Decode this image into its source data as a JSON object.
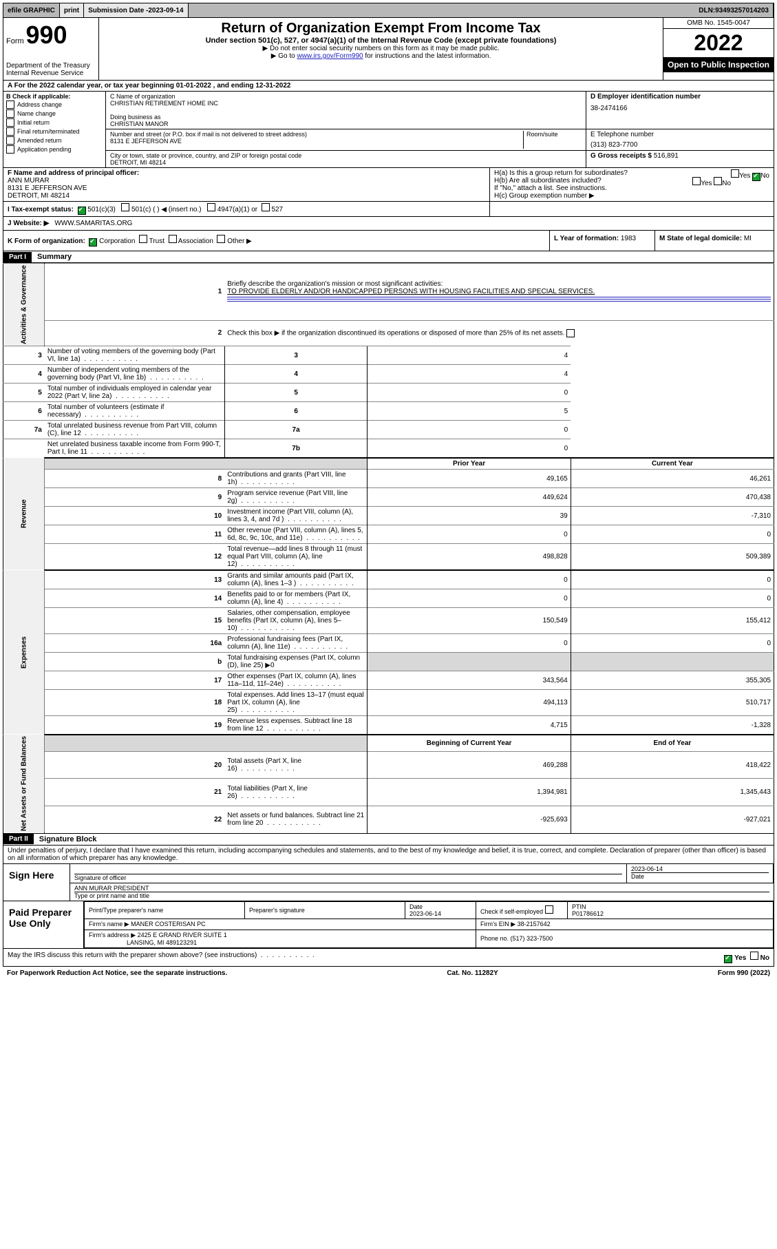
{
  "top": {
    "efile": "efile GRAPHIC",
    "print": "print",
    "submission_label": "Submission Date - ",
    "submission_date": "2023-09-14",
    "dln_label": "DLN: ",
    "dln": "93493257014203"
  },
  "header": {
    "form_label": "Form",
    "form_number": "990",
    "dept": "Department of the Treasury",
    "irs": "Internal Revenue Service",
    "title": "Return of Organization Exempt From Income Tax",
    "subtitle": "Under section 501(c), 527, or 4947(a)(1) of the Internal Revenue Code (except private foundations)",
    "line1": "▶ Do not enter social security numbers on this form as it may be made public.",
    "line2a": "▶ Go to ",
    "line2_link": "www.irs.gov/Form990",
    "line2b": " for instructions and the latest information.",
    "omb": "OMB No. 1545-0047",
    "year": "2022",
    "open_public": "Open to Public Inspection"
  },
  "row_a": "A For the 2022 calendar year, or tax year beginning 01-01-2022   , and ending 12-31-2022",
  "section_b": {
    "label": "B Check if applicable:",
    "items": [
      "Address change",
      "Name change",
      "Initial return",
      "Final return/terminated",
      "Amended return",
      "Application pending"
    ]
  },
  "section_c": {
    "name_label": "C Name of organization",
    "name": "CHRISTIAN RETIREMENT HOME INC",
    "dba_label": "Doing business as",
    "dba": "CHRISTIAN MANOR",
    "addr_label": "Number and street (or P.O. box if mail is not delivered to street address)",
    "room_label": "Room/suite",
    "addr": "8131 E JEFFERSON AVE",
    "city_label": "City or town, state or province, country, and ZIP or foreign postal code",
    "city": "DETROIT, MI  48214"
  },
  "section_d": {
    "label": "D Employer identification number",
    "ein": "38-2474166",
    "e_label": "E Telephone number",
    "phone": "(313) 823-7700",
    "g_label": "G Gross receipts $ ",
    "gross": "516,891"
  },
  "section_f": {
    "label": "F Name and address of principal officer:",
    "name": "ANN MURAR",
    "addr1": "8131 E JEFFERSON AVE",
    "addr2": "DETROIT, MI  48214"
  },
  "section_h": {
    "a": "H(a)  Is this a group return for subordinates?",
    "yes": "Yes",
    "no": "No",
    "b": "H(b)  Are all subordinates included?",
    "b_note": "If \"No,\" attach a list. See instructions.",
    "c": "H(c)  Group exemption number ▶"
  },
  "row_i": {
    "label": "I   Tax-exempt status:",
    "opt1": "501(c)(3)",
    "opt2": "501(c) (   ) ◀ (insert no.)",
    "opt3": "4947(a)(1) or",
    "opt4": "527"
  },
  "row_j": {
    "label": "J   Website: ▶ ",
    "url": "WWW.SAMARITAS.ORG"
  },
  "row_k": {
    "label": "K Form of organization:",
    "corp": "Corporation",
    "trust": "Trust",
    "assoc": "Association",
    "other": "Other ▶",
    "l_label": "L Year of formation: ",
    "l_val": "1983",
    "m_label": "M State of legal domicile: ",
    "m_val": "MI"
  },
  "part1": {
    "header": "Part I",
    "title": "Summary",
    "sections": {
      "gov": "Activities & Governance",
      "rev": "Revenue",
      "exp": "Expenses",
      "net": "Net Assets or Fund Balances"
    },
    "line1_label": "Briefly describe the organization's mission or most significant activities:",
    "line1_text": "TO PROVIDE ELDERLY AND/OR HANDICAPPED PERSONS WITH HOUSING FACILITIES AND SPECIAL SERVICES.",
    "line2": "Check this box ▶      if the organization discontinued its operations or disposed of more than 25% of its net assets.",
    "lines_gov": [
      {
        "n": "3",
        "d": "Number of voting members of the governing body (Part VI, line 1a)",
        "k": "3",
        "v": "4"
      },
      {
        "n": "4",
        "d": "Number of independent voting members of the governing body (Part VI, line 1b)",
        "k": "4",
        "v": "4"
      },
      {
        "n": "5",
        "d": "Total number of individuals employed in calendar year 2022 (Part V, line 2a)",
        "k": "5",
        "v": "0"
      },
      {
        "n": "6",
        "d": "Total number of volunteers (estimate if necessary)",
        "k": "6",
        "v": "5"
      },
      {
        "n": "7a",
        "d": "Total unrelated business revenue from Part VIII, column (C), line 12",
        "k": "7a",
        "v": "0"
      },
      {
        "n": "",
        "d": "Net unrelated business taxable income from Form 990-T, Part I, line 11",
        "k": "7b",
        "v": "0"
      }
    ],
    "col_head_prior": "Prior Year",
    "col_head_current": "Current Year",
    "lines_rev": [
      {
        "n": "8",
        "d": "Contributions and grants (Part VIII, line 1h)",
        "p": "49,165",
        "c": "46,261"
      },
      {
        "n": "9",
        "d": "Program service revenue (Part VIII, line 2g)",
        "p": "449,624",
        "c": "470,438"
      },
      {
        "n": "10",
        "d": "Investment income (Part VIII, column (A), lines 3, 4, and 7d )",
        "p": "39",
        "c": "-7,310"
      },
      {
        "n": "11",
        "d": "Other revenue (Part VIII, column (A), lines 5, 6d, 8c, 9c, 10c, and 11e)",
        "p": "0",
        "c": "0"
      },
      {
        "n": "12",
        "d": "Total revenue—add lines 8 through 11 (must equal Part VIII, column (A), line 12)",
        "p": "498,828",
        "c": "509,389"
      }
    ],
    "lines_exp": [
      {
        "n": "13",
        "d": "Grants and similar amounts paid (Part IX, column (A), lines 1–3 )",
        "p": "0",
        "c": "0"
      },
      {
        "n": "14",
        "d": "Benefits paid to or for members (Part IX, column (A), line 4)",
        "p": "0",
        "c": "0"
      },
      {
        "n": "15",
        "d": "Salaries, other compensation, employee benefits (Part IX, column (A), lines 5–10)",
        "p": "150,549",
        "c": "155,412"
      },
      {
        "n": "16a",
        "d": "Professional fundraising fees (Part IX, column (A), line 11e)",
        "p": "0",
        "c": "0"
      },
      {
        "n": "b",
        "d": "Total fundraising expenses (Part IX, column (D), line 25) ▶0",
        "p": "",
        "c": "",
        "shaded": true
      },
      {
        "n": "17",
        "d": "Other expenses (Part IX, column (A), lines 11a–11d, 11f–24e)",
        "p": "343,564",
        "c": "355,305"
      },
      {
        "n": "18",
        "d": "Total expenses. Add lines 13–17 (must equal Part IX, column (A), line 25)",
        "p": "494,113",
        "c": "510,717"
      },
      {
        "n": "19",
        "d": "Revenue less expenses. Subtract line 18 from line 12",
        "p": "4,715",
        "c": "-1,328"
      }
    ],
    "col_head_begin": "Beginning of Current Year",
    "col_head_end": "End of Year",
    "lines_net": [
      {
        "n": "20",
        "d": "Total assets (Part X, line 16)",
        "p": "469,288",
        "c": "418,422"
      },
      {
        "n": "21",
        "d": "Total liabilities (Part X, line 26)",
        "p": "1,394,981",
        "c": "1,345,443"
      },
      {
        "n": "22",
        "d": "Net assets or fund balances. Subtract line 21 from line 20",
        "p": "-925,693",
        "c": "-927,021"
      }
    ]
  },
  "part2": {
    "header": "Part II",
    "title": "Signature Block",
    "declaration": "Under penalties of perjury, I declare that I have examined this return, including accompanying schedules and statements, and to the best of my knowledge and belief, it is true, correct, and complete. Declaration of preparer (other than officer) is based on all information of which preparer has any knowledge."
  },
  "sign": {
    "label": "Sign Here",
    "sig_label": "Signature of officer",
    "date_label": "Date",
    "date": "2023-06-14",
    "name": "ANN MURAR  PRESIDENT",
    "name_label": "Type or print name and title"
  },
  "paid": {
    "label": "Paid Preparer Use Only",
    "h1": "Print/Type preparer's name",
    "h2": "Preparer's signature",
    "h3": "Date",
    "h3v": "2023-06-14",
    "h4": "Check        if self-employed",
    "h5": "PTIN",
    "h5v": "P01786612",
    "firm_label": "Firm's name    ▶ ",
    "firm": "MANER COSTERISAN PC",
    "ein_label": "Firm's EIN ▶ ",
    "ein": "38-2157642",
    "addr_label": "Firm's address ▶ ",
    "addr1": "2425 E GRAND RIVER SUITE 1",
    "addr2": "LANSING, MI  489123291",
    "phone_label": "Phone no. ",
    "phone": "(517) 323-7500"
  },
  "footer": {
    "discuss": "May the IRS discuss this return with the preparer shown above? (see instructions)",
    "yes": "Yes",
    "no": "No",
    "paperwork": "For Paperwork Reduction Act Notice, see the separate instructions.",
    "cat": "Cat. No. 11282Y",
    "form": "Form 990 (2022)"
  }
}
